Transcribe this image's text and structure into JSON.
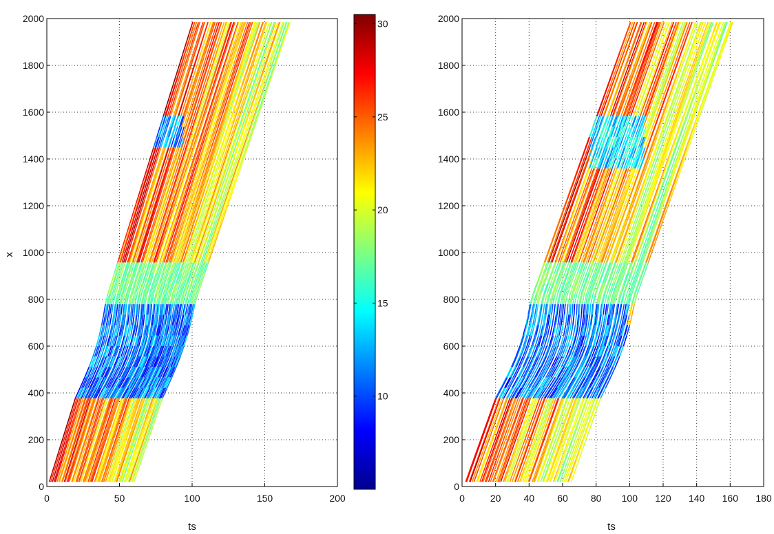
{
  "figure": {
    "panels": 2,
    "colormap": "jet",
    "colorbar": {
      "min": 5,
      "max": 30.5,
      "ticks": [
        10,
        15,
        20,
        25,
        30
      ]
    }
  },
  "chart_data": [
    {
      "type": "scatter",
      "title": "",
      "xlabel": "ts",
      "ylabel": "x",
      "xlim": [
        0,
        200
      ],
      "ylim": [
        0,
        2000
      ],
      "xticks": [
        0,
        50,
        100,
        150,
        200
      ],
      "yticks": [
        0,
        200,
        400,
        600,
        800,
        1000,
        1200,
        1400,
        1600,
        1800,
        2000
      ],
      "grid": true,
      "color_variable_range": [
        5,
        30.5
      ],
      "trajectory_start_ts_range": [
        2,
        60
      ],
      "trajectory_end_ts_range": [
        100,
        168
      ],
      "congestion_zones": [
        {
          "x_range": [
            380,
            800
          ],
          "ts_range": [
            20,
            110
          ],
          "color_value_approx": 8
        },
        {
          "x_range": [
            1450,
            1600
          ],
          "ts_range": [
            75,
            95
          ],
          "color_value_approx": 9
        }
      ]
    },
    {
      "type": "scatter",
      "title": "",
      "xlabel": "ts",
      "ylabel": "",
      "xlim": [
        0,
        180
      ],
      "ylim": [
        0,
        2000
      ],
      "xticks": [
        0,
        20,
        40,
        60,
        80,
        100,
        120,
        140,
        160,
        180
      ],
      "yticks": [
        0,
        200,
        400,
        600,
        800,
        1000,
        1200,
        1400,
        1600,
        1800,
        2000
      ],
      "grid": true,
      "color_variable_range": [
        5,
        30.5
      ],
      "trajectory_start_ts_range": [
        2,
        65
      ],
      "trajectory_end_ts_range": [
        100,
        162
      ],
      "congestion_zones": [
        {
          "x_range": [
            380,
            800
          ],
          "ts_range": [
            22,
            100
          ],
          "color_value_approx": 8
        },
        {
          "x_range": [
            1400,
            1600
          ],
          "ts_range": [
            78,
            110
          ],
          "color_value_approx": 11
        }
      ]
    }
  ]
}
